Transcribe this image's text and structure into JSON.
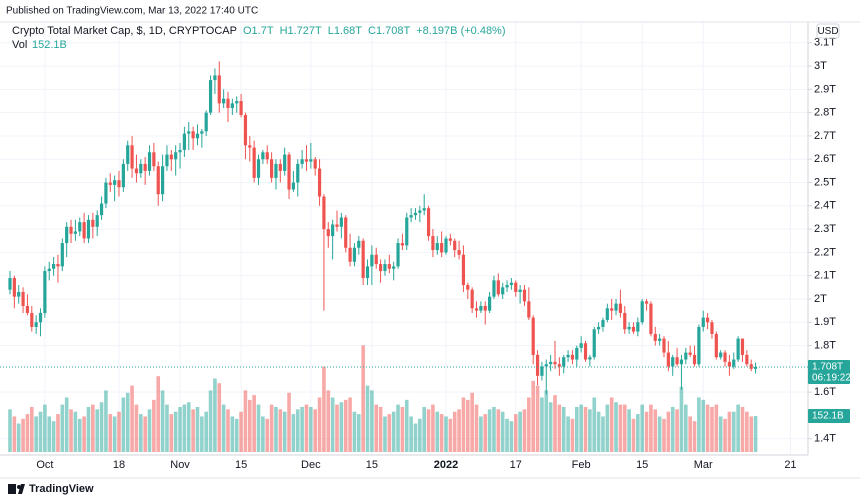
{
  "header": {
    "published": "Published on TradingView.com, Mar 13, 2022 17:40 UTC"
  },
  "footer": {
    "brand": "TradingView"
  },
  "chart_data": {
    "type": "candlestick",
    "title": "Crypto Total Market Cap, $, 1D, CRYPTOCAP",
    "info": [
      "O1.7T",
      "H1.727T",
      "L1.68T",
      "C1.708T",
      "+8.197B (+0.48%)"
    ],
    "currency": "USD",
    "last_price_label": "1.708T",
    "countdown": "06:19:22",
    "colors": {
      "up": "#26a69a",
      "down": "#ef5350"
    },
    "grid": true,
    "ylim": [
      1.343,
      3.155
    ],
    "yticks": [
      {
        "value": 3.1,
        "label": "3.1T"
      },
      {
        "value": 3.0,
        "label": "3T"
      },
      {
        "value": 2.9,
        "label": "2.9T"
      },
      {
        "value": 2.8,
        "label": "2.8T"
      },
      {
        "value": 2.7,
        "label": "2.7T"
      },
      {
        "value": 2.6,
        "label": "2.6T"
      },
      {
        "value": 2.5,
        "label": "2.5T"
      },
      {
        "value": 2.4,
        "label": "2.4T"
      },
      {
        "value": 2.3,
        "label": "2.3T"
      },
      {
        "value": 2.2,
        "label": "2.2T"
      },
      {
        "value": 2.1,
        "label": "2.1T"
      },
      {
        "value": 2.0,
        "label": "2T"
      },
      {
        "value": 1.9,
        "label": "1.9T"
      },
      {
        "value": 1.8,
        "label": "1.8T"
      },
      {
        "value": 1.6,
        "label": "1.6T"
      },
      {
        "value": 1.4,
        "label": "1.4T"
      }
    ],
    "categories": [
      null,
      null,
      null,
      null,
      null,
      null,
      null,
      null,
      "Oct",
      null,
      null,
      null,
      null,
      null,
      null,
      null,
      null,
      null,
      null,
      null,
      null,
      null,
      null,
      null,
      null,
      "18",
      null,
      null,
      null,
      null,
      null,
      null,
      null,
      null,
      null,
      null,
      null,
      null,
      null,
      "Nov",
      null,
      null,
      null,
      null,
      null,
      null,
      null,
      null,
      null,
      null,
      null,
      null,
      null,
      "15",
      null,
      null,
      null,
      null,
      null,
      null,
      null,
      null,
      null,
      null,
      null,
      null,
      null,
      null,
      null,
      "Dec",
      null,
      null,
      null,
      null,
      null,
      null,
      null,
      null,
      null,
      null,
      null,
      null,
      null,
      "15",
      null,
      null,
      null,
      null,
      null,
      null,
      null,
      null,
      null,
      null,
      null,
      null,
      null,
      null,
      null,
      null,
      "2022",
      null,
      null,
      null,
      null,
      null,
      null,
      null,
      null,
      null,
      null,
      null,
      null,
      null,
      null,
      null,
      "17",
      null,
      null,
      null,
      null,
      null,
      null,
      null,
      null,
      null,
      null,
      null,
      null,
      null,
      null,
      "Feb",
      null,
      null,
      null,
      null,
      null,
      null,
      null,
      null,
      null,
      null,
      null,
      null,
      null,
      "15",
      null,
      null,
      null,
      null,
      null,
      null,
      null,
      null,
      null,
      null,
      null,
      null,
      null,
      "Mar",
      null,
      null,
      null,
      null,
      null,
      null,
      null,
      null,
      null,
      null,
      null,
      null,
      null,
      null,
      null,
      null,
      null,
      null,
      null,
      "21",
      null,
      null,
      null
    ],
    "ohlc": [
      [
        2.04,
        2.12,
        2.02,
        2.09
      ],
      [
        2.09,
        2.1,
        1.96,
        2.01
      ],
      [
        2.01,
        2.06,
        1.98,
        2.03
      ],
      [
        2.03,
        2.05,
        1.94,
        1.97
      ],
      [
        1.97,
        2.02,
        1.93,
        1.94
      ],
      [
        1.94,
        1.97,
        1.86,
        1.88
      ],
      [
        1.88,
        1.93,
        1.85,
        1.9
      ],
      [
        1.9,
        1.96,
        1.84,
        1.94
      ],
      [
        1.94,
        2.14,
        1.92,
        2.12
      ],
      [
        2.12,
        2.16,
        2.08,
        2.13
      ],
      [
        2.13,
        2.18,
        2.1,
        2.15
      ],
      [
        2.15,
        2.19,
        2.07,
        2.14
      ],
      [
        2.14,
        2.26,
        2.12,
        2.24
      ],
      [
        2.24,
        2.33,
        2.18,
        2.31
      ],
      [
        2.31,
        2.34,
        2.24,
        2.28
      ],
      [
        2.28,
        2.34,
        2.25,
        2.29
      ],
      [
        2.29,
        2.35,
        2.27,
        2.33
      ],
      [
        2.33,
        2.37,
        2.24,
        2.26
      ],
      [
        2.26,
        2.36,
        2.24,
        2.34
      ],
      [
        2.34,
        2.37,
        2.26,
        2.31
      ],
      [
        2.31,
        2.38,
        2.27,
        2.36
      ],
      [
        2.36,
        2.44,
        2.34,
        2.41
      ],
      [
        2.41,
        2.52,
        2.39,
        2.5
      ],
      [
        2.5,
        2.54,
        2.46,
        2.49
      ],
      [
        2.49,
        2.53,
        2.42,
        2.51
      ],
      [
        2.51,
        2.55,
        2.44,
        2.48
      ],
      [
        2.48,
        2.6,
        2.46,
        2.58
      ],
      [
        2.58,
        2.68,
        2.55,
        2.66
      ],
      [
        2.66,
        2.7,
        2.52,
        2.56
      ],
      [
        2.56,
        2.62,
        2.5,
        2.54
      ],
      [
        2.54,
        2.6,
        2.52,
        2.58
      ],
      [
        2.58,
        2.61,
        2.49,
        2.55
      ],
      [
        2.55,
        2.66,
        2.53,
        2.63
      ],
      [
        2.63,
        2.67,
        2.55,
        2.57
      ],
      [
        2.57,
        2.59,
        2.4,
        2.45
      ],
      [
        2.45,
        2.62,
        2.42,
        2.57
      ],
      [
        2.57,
        2.66,
        2.55,
        2.62
      ],
      [
        2.62,
        2.64,
        2.55,
        2.6
      ],
      [
        2.6,
        2.66,
        2.53,
        2.63
      ],
      [
        2.63,
        2.67,
        2.56,
        2.64
      ],
      [
        2.64,
        2.74,
        2.61,
        2.71
      ],
      [
        2.71,
        2.76,
        2.64,
        2.72
      ],
      [
        2.72,
        2.74,
        2.64,
        2.69
      ],
      [
        2.69,
        2.75,
        2.66,
        2.71
      ],
      [
        2.71,
        2.73,
        2.65,
        2.72
      ],
      [
        2.72,
        2.81,
        2.7,
        2.8
      ],
      [
        2.8,
        2.96,
        2.79,
        2.94
      ],
      [
        2.94,
        2.99,
        2.88,
        2.96
      ],
      [
        2.96,
        3.02,
        2.8,
        2.84
      ],
      [
        2.84,
        2.9,
        2.82,
        2.86
      ],
      [
        2.86,
        2.89,
        2.76,
        2.82
      ],
      [
        2.82,
        2.86,
        2.79,
        2.84
      ],
      [
        2.84,
        2.87,
        2.8,
        2.85
      ],
      [
        2.85,
        2.88,
        2.78,
        2.79
      ],
      [
        2.79,
        2.8,
        2.6,
        2.66
      ],
      [
        2.66,
        2.7,
        2.59,
        2.65
      ],
      [
        2.65,
        2.68,
        2.5,
        2.52
      ],
      [
        2.52,
        2.62,
        2.49,
        2.6
      ],
      [
        2.6,
        2.64,
        2.58,
        2.63
      ],
      [
        2.63,
        2.66,
        2.58,
        2.6
      ],
      [
        2.6,
        2.63,
        2.5,
        2.52
      ],
      [
        2.52,
        2.6,
        2.47,
        2.58
      ],
      [
        2.58,
        2.6,
        2.5,
        2.55
      ],
      [
        2.55,
        2.65,
        2.53,
        2.62
      ],
      [
        2.62,
        2.63,
        2.43,
        2.47
      ],
      [
        2.47,
        2.55,
        2.46,
        2.5
      ],
      [
        2.5,
        2.6,
        2.44,
        2.58
      ],
      [
        2.58,
        2.64,
        2.56,
        2.6
      ],
      [
        2.6,
        2.66,
        2.55,
        2.59
      ],
      [
        2.59,
        2.67,
        2.56,
        2.6
      ],
      [
        2.6,
        2.61,
        2.53,
        2.56
      ],
      [
        2.56,
        2.6,
        2.4,
        2.44
      ],
      [
        2.44,
        2.45,
        1.95,
        2.3
      ],
      [
        2.3,
        2.33,
        2.22,
        2.27
      ],
      [
        2.27,
        2.34,
        2.17,
        2.32
      ],
      [
        2.32,
        2.38,
        2.29,
        2.31
      ],
      [
        2.31,
        2.37,
        2.26,
        2.35
      ],
      [
        2.35,
        2.36,
        2.2,
        2.22
      ],
      [
        2.22,
        2.28,
        2.14,
        2.16
      ],
      [
        2.16,
        2.24,
        2.14,
        2.22
      ],
      [
        2.22,
        2.27,
        2.19,
        2.25
      ],
      [
        2.25,
        2.26,
        2.06,
        2.09
      ],
      [
        2.09,
        2.17,
        2.06,
        2.14
      ],
      [
        2.14,
        2.23,
        2.06,
        2.19
      ],
      [
        2.19,
        2.22,
        2.13,
        2.15
      ],
      [
        2.15,
        2.17,
        2.07,
        2.12
      ],
      [
        2.12,
        2.17,
        2.1,
        2.15
      ],
      [
        2.15,
        2.19,
        2.11,
        2.13
      ],
      [
        2.13,
        2.16,
        2.08,
        2.14
      ],
      [
        2.14,
        2.26,
        2.13,
        2.24
      ],
      [
        2.24,
        2.28,
        2.21,
        2.23
      ],
      [
        2.23,
        2.37,
        2.21,
        2.35
      ],
      [
        2.35,
        2.39,
        2.33,
        2.36
      ],
      [
        2.36,
        2.39,
        2.34,
        2.37
      ],
      [
        2.37,
        2.4,
        2.33,
        2.38
      ],
      [
        2.38,
        2.45,
        2.36,
        2.39
      ],
      [
        2.39,
        2.4,
        2.25,
        2.27
      ],
      [
        2.27,
        2.3,
        2.18,
        2.21
      ],
      [
        2.21,
        2.27,
        2.19,
        2.24
      ],
      [
        2.24,
        2.29,
        2.18,
        2.2
      ],
      [
        2.2,
        2.27,
        2.19,
        2.26
      ],
      [
        2.26,
        2.28,
        2.23,
        2.25
      ],
      [
        2.25,
        2.26,
        2.18,
        2.21
      ],
      [
        2.21,
        2.25,
        2.17,
        2.19
      ],
      [
        2.19,
        2.23,
        2.03,
        2.06
      ],
      [
        2.06,
        2.07,
        2.0,
        2.04
      ],
      [
        2.04,
        2.05,
        1.94,
        1.96
      ],
      [
        1.96,
        1.99,
        1.92,
        1.95
      ],
      [
        1.95,
        1.99,
        1.94,
        1.97
      ],
      [
        1.97,
        1.99,
        1.89,
        1.95
      ],
      [
        1.95,
        2.03,
        1.94,
        2.01
      ],
      [
        2.01,
        2.1,
        2.0,
        2.08
      ],
      [
        2.08,
        2.11,
        2.01,
        2.02
      ],
      [
        2.02,
        2.07,
        2.0,
        2.05
      ],
      [
        2.05,
        2.08,
        2.03,
        2.06
      ],
      [
        2.06,
        2.09,
        2.04,
        2.07
      ],
      [
        2.07,
        2.08,
        2.01,
        2.03
      ],
      [
        2.03,
        2.06,
        1.98,
        2.04
      ],
      [
        2.04,
        2.06,
        1.97,
        1.99
      ],
      [
        1.99,
        2.05,
        1.91,
        1.92
      ],
      [
        1.92,
        1.93,
        1.72,
        1.76
      ],
      [
        1.76,
        1.78,
        1.63,
        1.67
      ],
      [
        1.67,
        1.73,
        1.65,
        1.71
      ],
      [
        1.71,
        1.74,
        1.59,
        1.72
      ],
      [
        1.72,
        1.76,
        1.69,
        1.73
      ],
      [
        1.73,
        1.82,
        1.7,
        1.72
      ],
      [
        1.72,
        1.75,
        1.67,
        1.71
      ],
      [
        1.71,
        1.76,
        1.68,
        1.75
      ],
      [
        1.75,
        1.78,
        1.73,
        1.76
      ],
      [
        1.76,
        1.78,
        1.72,
        1.74
      ],
      [
        1.74,
        1.8,
        1.71,
        1.79
      ],
      [
        1.79,
        1.84,
        1.77,
        1.81
      ],
      [
        1.81,
        1.82,
        1.73,
        1.74
      ],
      [
        1.74,
        1.76,
        1.71,
        1.75
      ],
      [
        1.75,
        1.88,
        1.74,
        1.87
      ],
      [
        1.87,
        1.9,
        1.85,
        1.88
      ],
      [
        1.88,
        1.92,
        1.86,
        1.91
      ],
      [
        1.91,
        1.98,
        1.9,
        1.96
      ],
      [
        1.96,
        2.0,
        1.91,
        1.95
      ],
      [
        1.95,
        2.0,
        1.93,
        1.98
      ],
      [
        1.98,
        2.04,
        1.92,
        1.94
      ],
      [
        1.94,
        1.97,
        1.85,
        1.87
      ],
      [
        1.87,
        1.9,
        1.85,
        1.88
      ],
      [
        1.88,
        1.9,
        1.85,
        1.86
      ],
      [
        1.86,
        1.92,
        1.84,
        1.9
      ],
      [
        1.9,
        2.0,
        1.89,
        1.99
      ],
      [
        1.99,
        2.0,
        1.95,
        1.98
      ],
      [
        1.98,
        1.99,
        1.84,
        1.85
      ],
      [
        1.85,
        1.88,
        1.8,
        1.82
      ],
      [
        1.82,
        1.85,
        1.8,
        1.83
      ],
      [
        1.83,
        1.84,
        1.75,
        1.77
      ],
      [
        1.77,
        1.82,
        1.69,
        1.71
      ],
      [
        1.71,
        1.76,
        1.67,
        1.75
      ],
      [
        1.75,
        1.79,
        1.71,
        1.72
      ],
      [
        1.72,
        1.76,
        1.61,
        1.74
      ],
      [
        1.74,
        1.79,
        1.72,
        1.77
      ],
      [
        1.77,
        1.8,
        1.75,
        1.76
      ],
      [
        1.76,
        1.8,
        1.71,
        1.72
      ],
      [
        1.72,
        1.89,
        1.71,
        1.88
      ],
      [
        1.88,
        1.95,
        1.86,
        1.92
      ],
      [
        1.92,
        1.94,
        1.87,
        1.9
      ],
      [
        1.9,
        1.91,
        1.83,
        1.85
      ],
      [
        1.85,
        1.86,
        1.74,
        1.75
      ],
      [
        1.75,
        1.78,
        1.74,
        1.77
      ],
      [
        1.77,
        1.78,
        1.71,
        1.73
      ],
      [
        1.73,
        1.76,
        1.67,
        1.71
      ],
      [
        1.71,
        1.77,
        1.7,
        1.74
      ],
      [
        1.74,
        1.84,
        1.73,
        1.83
      ],
      [
        1.83,
        1.83,
        1.73,
        1.76
      ],
      [
        1.76,
        1.78,
        1.71,
        1.72
      ],
      [
        1.72,
        1.74,
        1.69,
        1.7
      ],
      [
        1.7,
        1.727,
        1.68,
        1.708
      ],
      null,
      null,
      null,
      null,
      null,
      null,
      null,
      null,
      null,
      null,
      null
    ],
    "volume": {
      "name": "Vol",
      "value_label": "152.1B",
      "values": [
        180,
        150,
        120,
        140,
        160,
        190,
        150,
        170,
        200,
        150,
        130,
        160,
        200,
        230,
        180,
        170,
        140,
        150,
        190,
        200,
        180,
        210,
        260,
        160,
        150,
        170,
        230,
        250,
        280,
        200,
        160,
        150,
        180,
        220,
        320,
        260,
        200,
        160,
        170,
        190,
        200,
        210,
        180,
        190,
        150,
        170,
        260,
        310,
        290,
        200,
        180,
        150,
        140,
        170,
        260,
        220,
        240,
        200,
        150,
        140,
        200,
        190,
        180,
        170,
        250,
        160,
        180,
        190,
        200,
        190,
        180,
        230,
        360,
        260,
        230,
        200,
        210,
        220,
        230,
        170,
        160,
        450,
        280,
        260,
        200,
        190,
        150,
        160,
        170,
        200,
        190,
        220,
        150,
        120,
        140,
        190,
        180,
        200,
        170,
        160,
        150,
        140,
        170,
        180,
        230,
        220,
        250,
        200,
        150,
        160,
        180,
        190,
        180,
        170,
        140,
        130,
        160,
        170,
        180,
        230,
        300,
        280,
        230,
        260,
        210,
        240,
        200,
        190,
        150,
        140,
        190,
        200,
        190,
        180,
        230,
        170,
        150,
        200,
        230,
        210,
        200,
        200,
        180,
        140,
        160,
        200,
        170,
        200,
        180,
        150,
        140,
        170,
        190,
        180,
        275,
        200,
        150,
        130,
        230,
        220,
        200,
        190,
        200,
        150,
        140,
        170,
        170,
        200,
        190,
        170,
        150,
        152.1,
        null,
        null,
        null,
        null,
        null,
        null,
        null,
        null,
        null,
        null,
        null
      ]
    }
  }
}
